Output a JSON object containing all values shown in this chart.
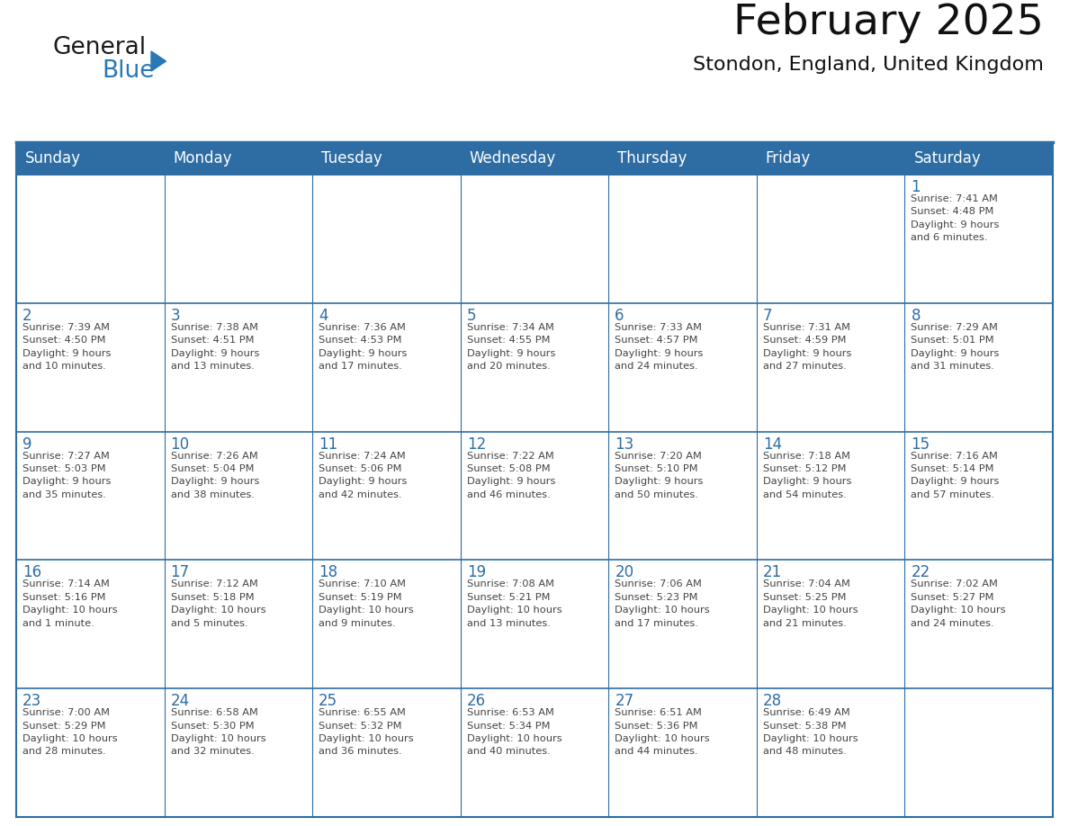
{
  "title": "February 2025",
  "subtitle": "Stondon, England, United Kingdom",
  "header_bg_color": "#2E6DA4",
  "header_text_color": "#FFFFFF",
  "cell_bg_color": "#FFFFFF",
  "day_number_color": "#2E6DA4",
  "cell_text_color": "#444444",
  "border_color": "#2E6DA4",
  "days_of_week": [
    "Sunday",
    "Monday",
    "Tuesday",
    "Wednesday",
    "Thursday",
    "Friday",
    "Saturday"
  ],
  "logo_text1": "General",
  "logo_text2": "Blue",
  "logo_color1": "#1a1a1a",
  "logo_color2": "#2778B5",
  "triangle_color": "#2778B5",
  "weeks": [
    [
      {
        "day": null,
        "info": null
      },
      {
        "day": null,
        "info": null
      },
      {
        "day": null,
        "info": null
      },
      {
        "day": null,
        "info": null
      },
      {
        "day": null,
        "info": null
      },
      {
        "day": null,
        "info": null
      },
      {
        "day": "1",
        "info": "Sunrise: 7:41 AM\nSunset: 4:48 PM\nDaylight: 9 hours\nand 6 minutes."
      }
    ],
    [
      {
        "day": "2",
        "info": "Sunrise: 7:39 AM\nSunset: 4:50 PM\nDaylight: 9 hours\nand 10 minutes."
      },
      {
        "day": "3",
        "info": "Sunrise: 7:38 AM\nSunset: 4:51 PM\nDaylight: 9 hours\nand 13 minutes."
      },
      {
        "day": "4",
        "info": "Sunrise: 7:36 AM\nSunset: 4:53 PM\nDaylight: 9 hours\nand 17 minutes."
      },
      {
        "day": "5",
        "info": "Sunrise: 7:34 AM\nSunset: 4:55 PM\nDaylight: 9 hours\nand 20 minutes."
      },
      {
        "day": "6",
        "info": "Sunrise: 7:33 AM\nSunset: 4:57 PM\nDaylight: 9 hours\nand 24 minutes."
      },
      {
        "day": "7",
        "info": "Sunrise: 7:31 AM\nSunset: 4:59 PM\nDaylight: 9 hours\nand 27 minutes."
      },
      {
        "day": "8",
        "info": "Sunrise: 7:29 AM\nSunset: 5:01 PM\nDaylight: 9 hours\nand 31 minutes."
      }
    ],
    [
      {
        "day": "9",
        "info": "Sunrise: 7:27 AM\nSunset: 5:03 PM\nDaylight: 9 hours\nand 35 minutes."
      },
      {
        "day": "10",
        "info": "Sunrise: 7:26 AM\nSunset: 5:04 PM\nDaylight: 9 hours\nand 38 minutes."
      },
      {
        "day": "11",
        "info": "Sunrise: 7:24 AM\nSunset: 5:06 PM\nDaylight: 9 hours\nand 42 minutes."
      },
      {
        "day": "12",
        "info": "Sunrise: 7:22 AM\nSunset: 5:08 PM\nDaylight: 9 hours\nand 46 minutes."
      },
      {
        "day": "13",
        "info": "Sunrise: 7:20 AM\nSunset: 5:10 PM\nDaylight: 9 hours\nand 50 minutes."
      },
      {
        "day": "14",
        "info": "Sunrise: 7:18 AM\nSunset: 5:12 PM\nDaylight: 9 hours\nand 54 minutes."
      },
      {
        "day": "15",
        "info": "Sunrise: 7:16 AM\nSunset: 5:14 PM\nDaylight: 9 hours\nand 57 minutes."
      }
    ],
    [
      {
        "day": "16",
        "info": "Sunrise: 7:14 AM\nSunset: 5:16 PM\nDaylight: 10 hours\nand 1 minute."
      },
      {
        "day": "17",
        "info": "Sunrise: 7:12 AM\nSunset: 5:18 PM\nDaylight: 10 hours\nand 5 minutes."
      },
      {
        "day": "18",
        "info": "Sunrise: 7:10 AM\nSunset: 5:19 PM\nDaylight: 10 hours\nand 9 minutes."
      },
      {
        "day": "19",
        "info": "Sunrise: 7:08 AM\nSunset: 5:21 PM\nDaylight: 10 hours\nand 13 minutes."
      },
      {
        "day": "20",
        "info": "Sunrise: 7:06 AM\nSunset: 5:23 PM\nDaylight: 10 hours\nand 17 minutes."
      },
      {
        "day": "21",
        "info": "Sunrise: 7:04 AM\nSunset: 5:25 PM\nDaylight: 10 hours\nand 21 minutes."
      },
      {
        "day": "22",
        "info": "Sunrise: 7:02 AM\nSunset: 5:27 PM\nDaylight: 10 hours\nand 24 minutes."
      }
    ],
    [
      {
        "day": "23",
        "info": "Sunrise: 7:00 AM\nSunset: 5:29 PM\nDaylight: 10 hours\nand 28 minutes."
      },
      {
        "day": "24",
        "info": "Sunrise: 6:58 AM\nSunset: 5:30 PM\nDaylight: 10 hours\nand 32 minutes."
      },
      {
        "day": "25",
        "info": "Sunrise: 6:55 AM\nSunset: 5:32 PM\nDaylight: 10 hours\nand 36 minutes."
      },
      {
        "day": "26",
        "info": "Sunrise: 6:53 AM\nSunset: 5:34 PM\nDaylight: 10 hours\nand 40 minutes."
      },
      {
        "day": "27",
        "info": "Sunrise: 6:51 AM\nSunset: 5:36 PM\nDaylight: 10 hours\nand 44 minutes."
      },
      {
        "day": "28",
        "info": "Sunrise: 6:49 AM\nSunset: 5:38 PM\nDaylight: 10 hours\nand 48 minutes."
      },
      {
        "day": null,
        "info": null
      }
    ]
  ]
}
